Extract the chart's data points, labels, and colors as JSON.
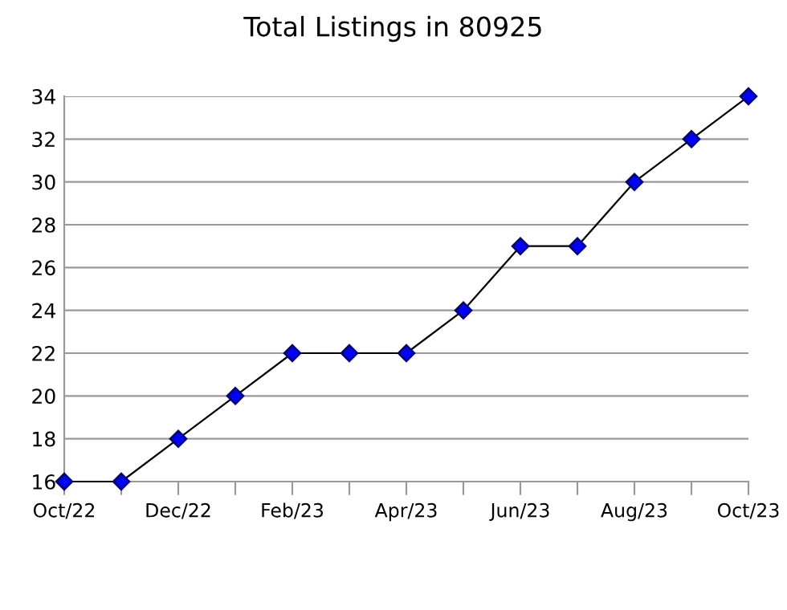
{
  "chart_data": {
    "type": "line",
    "title": "Total Listings in 80925",
    "categories": [
      "Oct/22",
      null,
      "Dec/22",
      null,
      "Feb/23",
      null,
      "Apr/23",
      null,
      "Jun/23",
      null,
      "Aug/23",
      null,
      "Oct/23"
    ],
    "series": [
      {
        "color": "#0000ff",
        "values": [
          16,
          16,
          18,
          20,
          22,
          22,
          22,
          24,
          27,
          27,
          30,
          32,
          34
        ]
      }
    ],
    "ylim": [
      16,
      34
    ],
    "yticks": [
      16,
      18,
      20,
      22,
      24,
      26,
      28,
      30,
      32,
      34
    ],
    "grid": "y",
    "marker": "diamond",
    "line_style": "solid",
    "legend": false
  }
}
